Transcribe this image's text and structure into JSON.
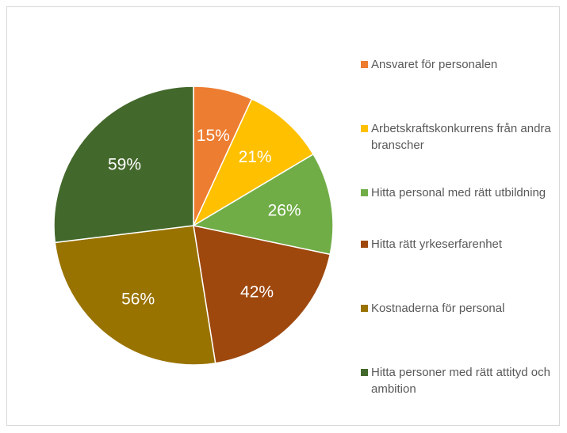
{
  "chart_data": {
    "type": "pie",
    "title": "",
    "categories": [
      "Ansvaret för personalen",
      "Arbetskraftskonkurrens från andra branscher",
      "Hitta personal med rätt utbildning",
      "Hitta rätt yrkeserfarenhet",
      "Kostnaderna för personal",
      "Hitta personer med rätt attityd och ambition"
    ],
    "values": [
      15,
      21,
      26,
      42,
      56,
      59
    ],
    "labels": [
      "15%",
      "21%",
      "26%",
      "42%",
      "56%",
      "59%"
    ],
    "colors": [
      "#ED7D31",
      "#FFC000",
      "#70AD47",
      "#9E480E",
      "#997300",
      "#43682B"
    ],
    "legend_position": "right"
  }
}
